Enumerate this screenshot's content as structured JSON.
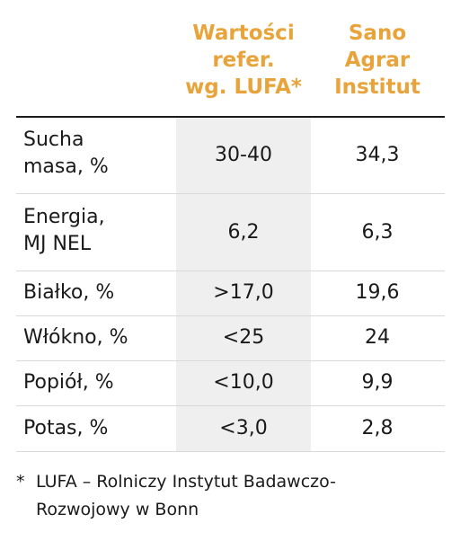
{
  "header": {
    "col_ref_line1": "Wartości",
    "col_ref_line2": "refer.",
    "col_ref_line3": "wg. LUFA*",
    "col_lab_line1": "Sano",
    "col_lab_line2": "Agrar",
    "col_lab_line3": "Institut"
  },
  "rows": [
    {
      "label_line1": "Sucha",
      "label_line2": "masa, %",
      "ref": "30-40",
      "value": "34,3"
    },
    {
      "label_line1": "Energia,",
      "label_line2": "MJ NEL",
      "ref": "6,2",
      "value": "6,3"
    },
    {
      "label": "Białko, %",
      "ref": ">17,0",
      "value": "19,6"
    },
    {
      "label": "Włókno, %",
      "ref": "<25",
      "value": "24"
    },
    {
      "label": "Popiół, %",
      "ref": "<10,0",
      "value": "9,9"
    },
    {
      "label": "Potas, %",
      "ref": "<3,0",
      "value": "2,8"
    }
  ],
  "footnote": {
    "marker": "*",
    "line1": "LUFA – Rolniczy Instytut Badawczo-",
    "line2": "Rozwojowy w Bonn"
  },
  "colors": {
    "accent": "#e8a33a",
    "shade": "#efefef",
    "text": "#1a1a1a",
    "rule": "#d9d9d9"
  }
}
